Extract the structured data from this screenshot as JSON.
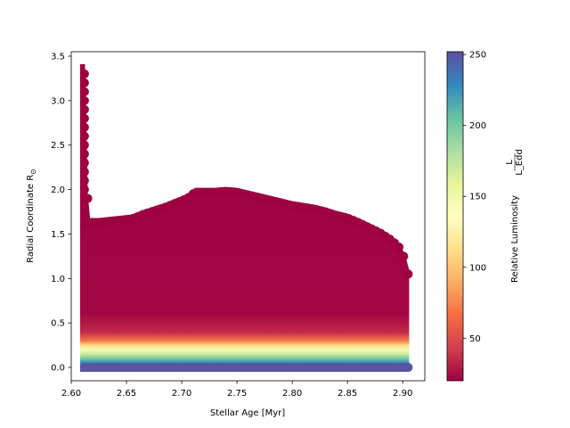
{
  "chart_data": {
    "type": "scatter",
    "title": "",
    "xlabel": "Stellar Age [Myr]",
    "ylabel": "Radial Coordinate R",
    "ylabel_subscript": "⊙",
    "xlim": [
      2.6,
      2.92
    ],
    "ylim": [
      -0.15,
      3.55
    ],
    "xticks": [
      2.6,
      2.65,
      2.7,
      2.75,
      2.8,
      2.85,
      2.9
    ],
    "xtick_labels": [
      "2.60",
      "2.65",
      "2.70",
      "2.75",
      "2.80",
      "2.85",
      "2.90"
    ],
    "yticks": [
      0.0,
      0.5,
      1.0,
      1.5,
      2.0,
      2.5,
      3.0,
      3.5
    ],
    "ytick_labels": [
      "0.0",
      "0.5",
      "1.0",
      "1.5",
      "2.0",
      "2.5",
      "3.0",
      "3.5"
    ],
    "grid": false,
    "colormap": "Spectral",
    "colorbar": {
      "label": "Relative Luminosity",
      "label_fraction_num": "L",
      "label_fraction_den": "L_Edd",
      "range": [
        20,
        252
      ],
      "ticks": [
        50,
        100,
        150,
        200,
        250
      ],
      "tick_labels": [
        "50",
        "100",
        "150",
        "200",
        "250"
      ]
    },
    "envelope": {
      "description": "upper radius boundary of the plotted points vs. stellar age",
      "x": [
        2.612,
        2.6125,
        2.615,
        2.617,
        2.625,
        2.64,
        2.655,
        2.665,
        2.675,
        2.685,
        2.695,
        2.705,
        2.712,
        2.72,
        2.73,
        2.74,
        2.75,
        2.76,
        2.77,
        2.78,
        2.79,
        2.8,
        2.81,
        2.82,
        2.83,
        2.84,
        2.85,
        2.86,
        2.87,
        2.88,
        2.89,
        2.897,
        2.902,
        2.905
      ],
      "y": [
        3.4,
        3.4,
        1.9,
        1.63,
        1.63,
        1.65,
        1.67,
        1.72,
        1.76,
        1.8,
        1.85,
        1.9,
        1.97,
        1.97,
        1.97,
        1.98,
        1.97,
        1.94,
        1.91,
        1.88,
        1.85,
        1.82,
        1.8,
        1.78,
        1.75,
        1.71,
        1.68,
        1.63,
        1.57,
        1.51,
        1.43,
        1.35,
        1.22,
        1.05
      ]
    },
    "luminosity_profile": {
      "description": "approximate colour value vs radius (same for all ages)",
      "r": [
        0.0,
        0.05,
        0.1,
        0.15,
        0.2,
        0.25,
        0.3,
        0.4,
        0.6,
        3.5
      ],
      "value": [
        250,
        230,
        200,
        170,
        145,
        110,
        70,
        35,
        22,
        20
      ]
    }
  }
}
